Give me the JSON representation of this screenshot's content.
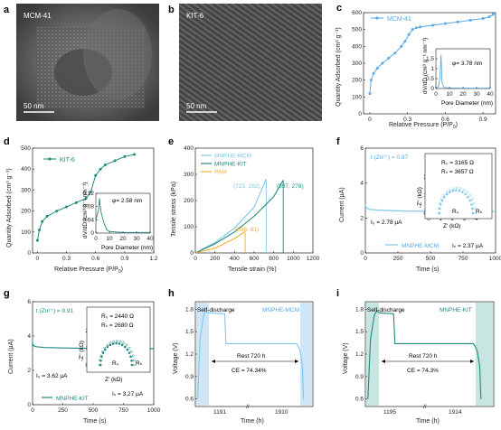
{
  "panels": {
    "a": {
      "letter": "a",
      "image_label": "MCM-41",
      "scale": "50 nm"
    },
    "b": {
      "letter": "b",
      "image_label": "KIT-6",
      "scale": "50 nm"
    },
    "c": {
      "letter": "c",
      "legend": "MCM-41",
      "xlabel": "Relative Pressure (P/P",
      "xlabel_sub": "0",
      "xlabel_end": ")",
      "ylabel": "Quantity Adsorbed (cm³ g⁻¹)",
      "inset_xlabel": "Pore Diameter (nm)",
      "inset_ylabel": "dV/dD (cm³ g⁻¹ nm⁻¹)",
      "inset_note": "φ= 3.78 nm"
    },
    "d": {
      "letter": "d",
      "legend": "KIT-6",
      "xlabel": "Relative Pressure (P/P",
      "xlabel_sub": "0",
      "xlabel_end": ")",
      "ylabel": "Quantity Adsorbed (cm³ g⁻¹)",
      "inset_xlabel": "Pore Diameter (nm)",
      "inset_ylabel": "dV/dD (cm³ g⁻¹ nm⁻¹)",
      "inset_note": "φ= 2.58 nm"
    },
    "e": {
      "letter": "e",
      "xlabel": "Tensile strain (%)",
      "ylabel": "Tensile stress (kPa)",
      "legend": [
        "MNPHE-MCM",
        "MNPHE-KIT",
        "PAM"
      ],
      "labels": [
        "(723, 282)",
        "(897, 278)",
        "(508, 81)"
      ]
    },
    "f": {
      "letter": "f",
      "xlabel": "Time (s)",
      "ylabel": "Current (µA)",
      "t_label": "t (Zn²⁺) = 0.87",
      "r0": "R₀ = 3165 Ω",
      "rs": "Rₛ = 3657 Ω",
      "i0": "I₀ = 2.78 µA",
      "is": "Iₛ = 2.37 µA",
      "legend": "MNPHE-MCM",
      "inset_x": "Z' (kΩ)",
      "inset_y": "-Z'' (kΩ)",
      "r0_mark": "R₀",
      "rs_mark": "Rₛ"
    },
    "g": {
      "letter": "g",
      "xlabel": "Time (s)",
      "ylabel": "Current (µA)",
      "t_label": "t (Zn²⁺) = 0.91",
      "r0": "R₀ = 2440 Ω",
      "rs": "Rₛ = 2680 Ω",
      "i0": "I₀ = 3.62 µA",
      "is": "Iₛ = 3.27 µA",
      "legend": "MNPHE-KIT",
      "inset_x": "Z' (kΩ)",
      "inset_y": "-Z'' (kΩ)",
      "r0_mark": "R₀",
      "rs_mark": "Rₛ"
    },
    "h": {
      "letter": "h",
      "xlabel": "Time (h)",
      "ylabel": "Voltage (V)",
      "self": "Self-discharge",
      "name": "MNPHE-MCM",
      "rest": "Rest 720 h",
      "ce": "CE = 74.34%",
      "ticks": [
        "1191",
        "1910"
      ]
    },
    "i": {
      "letter": "i",
      "xlabel": "Time (h)",
      "ylabel": "Voltage (V)",
      "self": "Self-discharge",
      "name": "MNPHE-KIT",
      "rest": "Rest 720 h",
      "ce": "CE = 74.3%",
      "ticks": [
        "1195",
        "1914"
      ]
    }
  },
  "chart_data": [
    {
      "panel": "c",
      "type": "line",
      "xlabel": "Relative Pressure (P/P0)",
      "ylabel": "Quantity Adsorbed (cm3 g-1)",
      "xlim": [
        -0.05,
        1.0
      ],
      "ylim": [
        0,
        600
      ],
      "color": "#5aa9e6",
      "x": [
        0.0,
        0.01,
        0.03,
        0.06,
        0.1,
        0.15,
        0.2,
        0.25,
        0.28,
        0.31,
        0.34,
        0.37,
        0.4,
        0.5,
        0.6,
        0.7,
        0.8,
        0.9,
        0.95,
        0.98
      ],
      "y": [
        120,
        200,
        240,
        270,
        300,
        330,
        360,
        400,
        430,
        470,
        500,
        510,
        515,
        525,
        535,
        545,
        555,
        565,
        575,
        590
      ],
      "inset": {
        "type": "line",
        "xlim": [
          0,
          40
        ],
        "ylim": [
          0,
          2.0
        ],
        "x": [
          0,
          2,
          3,
          3.78,
          4.5,
          6,
          10,
          20,
          30,
          40
        ],
        "y": [
          0.05,
          0.1,
          0.6,
          1.7,
          0.3,
          0.05,
          0.03,
          0.02,
          0.02,
          0.02
        ]
      }
    },
    {
      "panel": "d",
      "type": "line",
      "xlabel": "Relative Pressure (P/P0)",
      "ylabel": "Quantity Adsorbed (cm3 g-1)",
      "xlim": [
        -0.05,
        1.2
      ],
      "ylim": [
        0,
        500
      ],
      "color": "#1f8a80",
      "x": [
        0.0,
        0.02,
        0.05,
        0.1,
        0.2,
        0.3,
        0.4,
        0.5,
        0.55,
        0.6,
        0.65,
        0.7,
        0.8,
        0.9,
        1.0
      ],
      "y": [
        60,
        110,
        150,
        175,
        200,
        220,
        240,
        260,
        290,
        370,
        400,
        420,
        440,
        460,
        470
      ],
      "inset": {
        "type": "line",
        "xlim": [
          0,
          40
        ],
        "ylim": [
          0,
          0.12
        ],
        "x": [
          0,
          2,
          2.58,
          3,
          4,
          6,
          8,
          10,
          20,
          30,
          40
        ],
        "y": [
          0.04,
          0.07,
          0.105,
          0.09,
          0.06,
          0.03,
          0.01,
          0.005,
          0.002,
          0.002,
          0.002
        ]
      }
    },
    {
      "panel": "e",
      "type": "line",
      "xlabel": "Tensile strain (%)",
      "ylabel": "Tensile stress (kPa)",
      "xlim": [
        0,
        1200
      ],
      "ylim": [
        0,
        400
      ],
      "series": [
        {
          "name": "MNPHE-MCM",
          "color": "#7fc6e8",
          "x": [
            0,
            200,
            400,
            600,
            723
          ],
          "y": [
            0,
            40,
            95,
            175,
            282
          ]
        },
        {
          "name": "MNPHE-KIT",
          "color": "#1f8a80",
          "x": [
            0,
            200,
            400,
            600,
            800,
            897
          ],
          "y": [
            0,
            35,
            80,
            140,
            215,
            278
          ]
        },
        {
          "name": "PAM",
          "color": "#f0b030",
          "x": [
            0,
            200,
            400,
            508
          ],
          "y": [
            0,
            18,
            55,
            81
          ]
        }
      ]
    },
    {
      "panel": "f",
      "type": "line",
      "xlabel": "Time (s)",
      "ylabel": "Current (µA)",
      "xlim": [
        0,
        1000
      ],
      "ylim": [
        0,
        6
      ],
      "color": "#7fc6e8",
      "x": [
        0,
        5,
        30,
        100,
        300,
        600,
        1000
      ],
      "y": [
        2.78,
        2.6,
        2.5,
        2.45,
        2.4,
        2.38,
        2.37
      ],
      "inset": {
        "type": "scatter",
        "xlabel": "Z' (kΩ)",
        "ylabel": "-Z'' (kΩ)",
        "xlim": [
          0,
          5
        ],
        "ylim": [
          0,
          2
        ]
      }
    },
    {
      "panel": "g",
      "type": "line",
      "xlabel": "Time (s)",
      "ylabel": "Current (µA)",
      "xlim": [
        0,
        1000
      ],
      "ylim": [
        0,
        6
      ],
      "color": "#1f8a80",
      "x": [
        0,
        5,
        30,
        100,
        300,
        600,
        1000
      ],
      "y": [
        3.62,
        3.45,
        3.38,
        3.33,
        3.3,
        3.28,
        3.27
      ],
      "inset": {
        "type": "scatter",
        "xlabel": "Z' (kΩ)",
        "ylabel": "-Z'' (kΩ)",
        "xlim": [
          0,
          5
        ],
        "ylim": [
          0,
          2
        ]
      }
    },
    {
      "panel": "h",
      "type": "line",
      "xlabel": "Time (h)",
      "ylabel": "Voltage (V)",
      "ylim": [
        0.5,
        1.9
      ],
      "color": "#7fc6e8",
      "x": [
        "1191",
        "1910"
      ],
      "annotation": "CE = 74.34%"
    },
    {
      "panel": "i",
      "type": "line",
      "xlabel": "Time (h)",
      "ylabel": "Voltage (V)",
      "ylim": [
        0.5,
        1.9
      ],
      "color": "#1f8a80",
      "x": [
        "1195",
        "1914"
      ],
      "annotation": "CE = 74.3%"
    }
  ]
}
